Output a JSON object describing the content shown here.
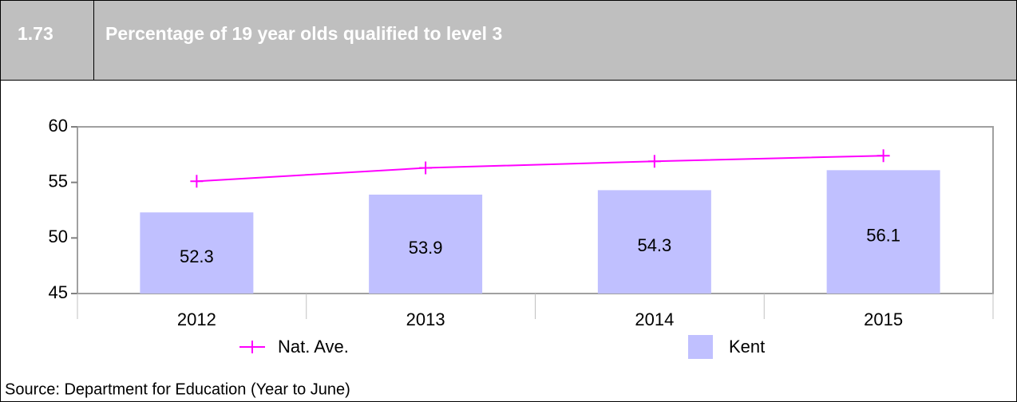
{
  "header": {
    "number": "1.73"
  },
  "chart_data": {
    "type": "bar",
    "title": "Percentage of 19 year olds qualified to level 3",
    "categories": [
      "2012",
      "2013",
      "2014",
      "2015"
    ],
    "series": [
      {
        "name": "Nat. Ave.",
        "type": "line",
        "color": "#ff00ff",
        "values": [
          55.1,
          56.3,
          56.9,
          57.4
        ]
      },
      {
        "name": "Kent",
        "type": "bar",
        "color": "#c0c0ff",
        "values": [
          52.3,
          53.9,
          54.3,
          56.1
        ]
      }
    ],
    "ylim": [
      45,
      60
    ],
    "yticks": [
      45,
      50,
      55,
      60
    ],
    "grid": false
  },
  "footer": {
    "source": "Source: Department for Education (Year to June)"
  }
}
